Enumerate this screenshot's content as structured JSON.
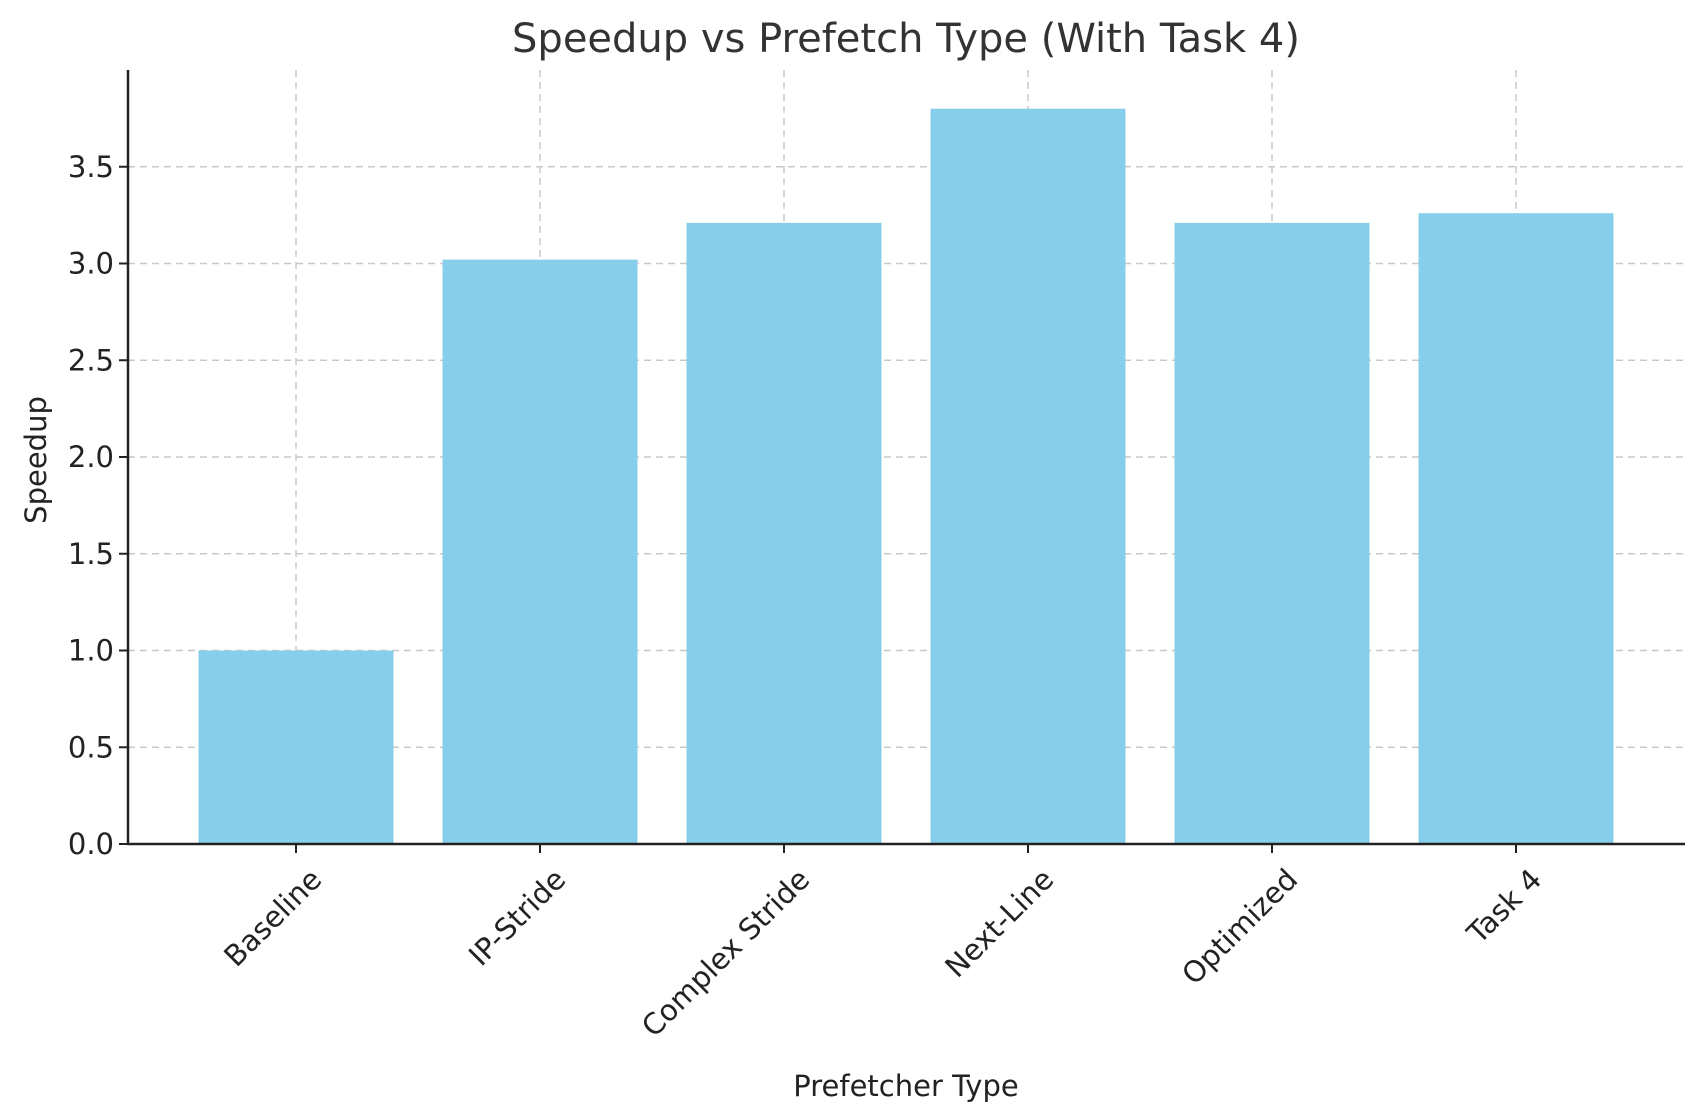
{
  "chart_data": {
    "type": "bar",
    "title": "Speedup vs Prefetch Type (With Task 4)",
    "xlabel": "Prefetcher Type",
    "ylabel": "Speedup",
    "categories": [
      "Baseline",
      "IP-Stride",
      "Complex Stride",
      "Next-Line",
      "Optimized",
      "Task 4"
    ],
    "values": [
      1.0,
      3.02,
      3.21,
      3.8,
      3.21,
      3.26
    ],
    "ylim": [
      0,
      4.0
    ],
    "yticks": [
      "0.0",
      "0.5",
      "1.0",
      "1.5",
      "2.0",
      "2.5",
      "3.0",
      "3.5"
    ],
    "grid": true,
    "bar_color": "#87CEEB"
  }
}
